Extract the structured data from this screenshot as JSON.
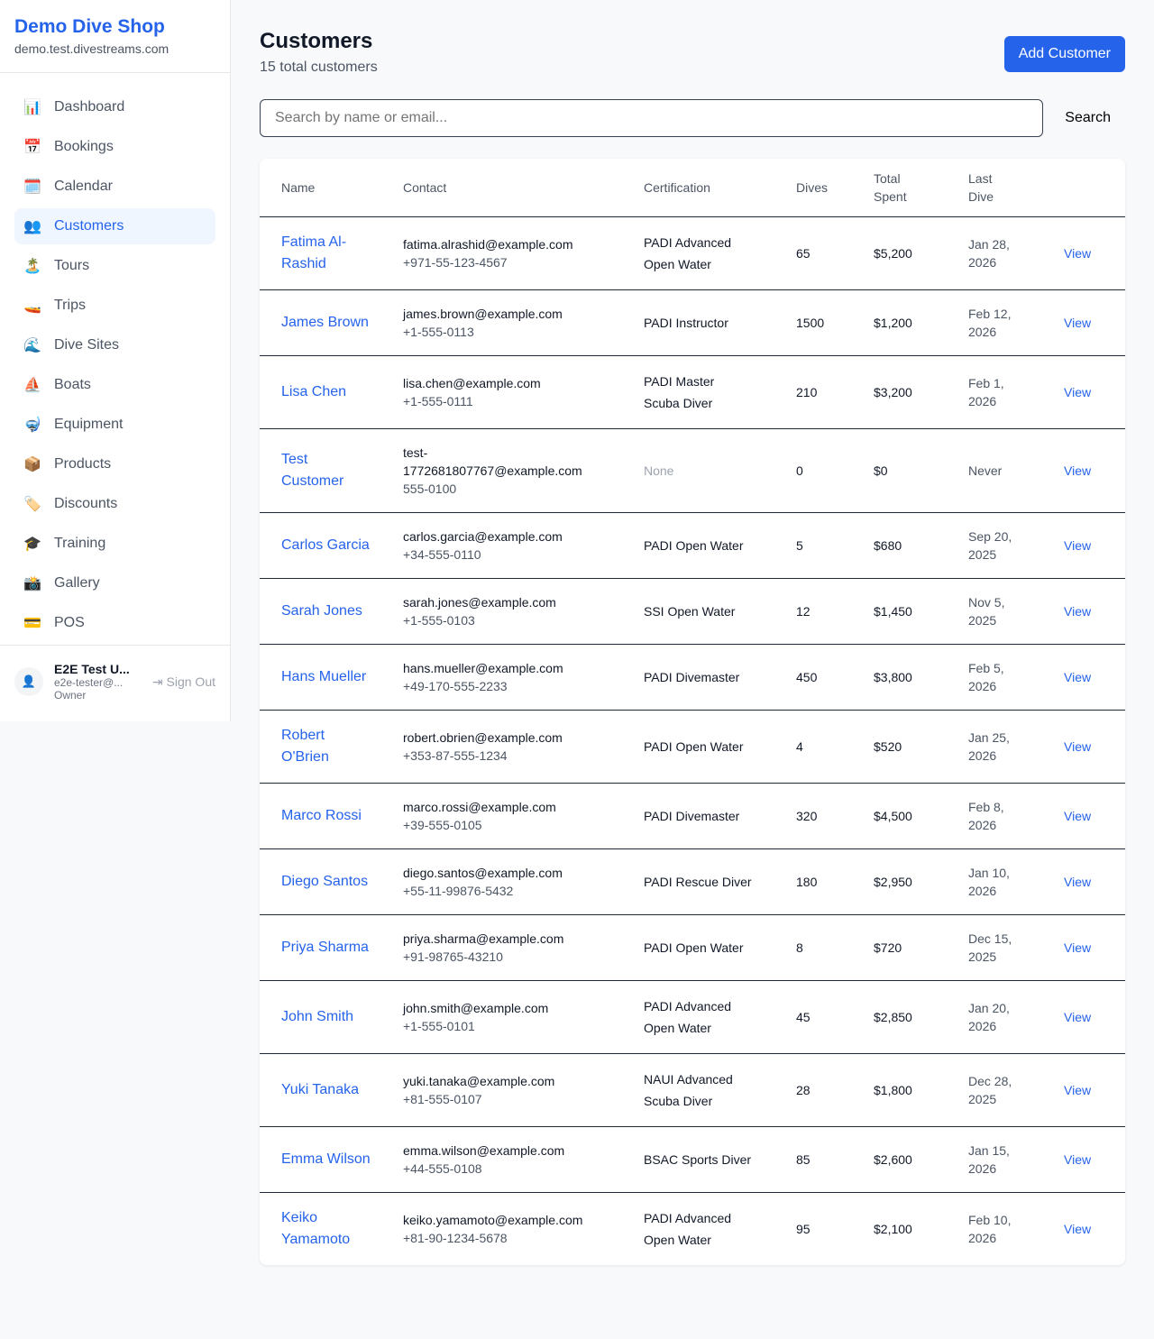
{
  "sidebar": {
    "brand": "Demo Dive Shop",
    "domain": "demo.test.divestreams.com",
    "items": [
      {
        "label": "Dashboard",
        "icon": "📊"
      },
      {
        "label": "Bookings",
        "icon": "📅"
      },
      {
        "label": "Calendar",
        "icon": "🗓️"
      },
      {
        "label": "Customers",
        "icon": "👥",
        "active": true
      },
      {
        "label": "Tours",
        "icon": "🏝️"
      },
      {
        "label": "Trips",
        "icon": "🚤"
      },
      {
        "label": "Dive Sites",
        "icon": "🌊"
      },
      {
        "label": "Boats",
        "icon": "⛵"
      },
      {
        "label": "Equipment",
        "icon": "🤿"
      },
      {
        "label": "Products",
        "icon": "📦"
      },
      {
        "label": "Discounts",
        "icon": "🏷️"
      },
      {
        "label": "Training",
        "icon": "🎓"
      },
      {
        "label": "Gallery",
        "icon": "📸"
      },
      {
        "label": "POS",
        "icon": "💳"
      }
    ],
    "user": {
      "name": "E2E Test U...",
      "email": "e2e-tester@...",
      "role": "Owner",
      "sign_out": "Sign Out"
    }
  },
  "header": {
    "title": "Customers",
    "subtitle": "15 total customers",
    "add_label": "Add Customer"
  },
  "search": {
    "placeholder": "Search by name or email...",
    "button": "Search"
  },
  "table": {
    "columns": [
      "Name",
      "Contact",
      "Certification",
      "Dives",
      "Total Spent",
      "Last Dive"
    ],
    "rows": [
      {
        "name": "Fatima Al-Rashid",
        "email": "fatima.alrashid@example.com",
        "phone": "+971-55-123-4567",
        "cert": "PADI Advanced Open Water",
        "dives": "65",
        "spent": "$5,200",
        "last": "Jan 28, 2026"
      },
      {
        "name": "James Brown",
        "email": "james.brown@example.com",
        "phone": "+1-555-0113",
        "cert": "PADI Instructor",
        "dives": "1500",
        "spent": "$1,200",
        "last": "Feb 12, 2026"
      },
      {
        "name": "Lisa Chen",
        "email": "lisa.chen@example.com",
        "phone": "+1-555-0111",
        "cert": "PADI Master Scuba Diver",
        "dives": "210",
        "spent": "$3,200",
        "last": "Feb 1, 2026"
      },
      {
        "name": "Test Customer",
        "email": "test-1772681807767@example.com",
        "phone": "555-0100",
        "cert": "None",
        "dives": "0",
        "spent": "$0",
        "last": "Never"
      },
      {
        "name": "Carlos Garcia",
        "email": "carlos.garcia@example.com",
        "phone": "+34-555-0110",
        "cert": "PADI Open Water",
        "dives": "5",
        "spent": "$680",
        "last": "Sep 20, 2025"
      },
      {
        "name": "Sarah Jones",
        "email": "sarah.jones@example.com",
        "phone": "+1-555-0103",
        "cert": "SSI Open Water",
        "dives": "12",
        "spent": "$1,450",
        "last": "Nov 5, 2025"
      },
      {
        "name": "Hans Mueller",
        "email": "hans.mueller@example.com",
        "phone": "+49-170-555-2233",
        "cert": "PADI Divemaster",
        "dives": "450",
        "spent": "$3,800",
        "last": "Feb 5, 2026"
      },
      {
        "name": "Robert O'Brien",
        "email": "robert.obrien@example.com",
        "phone": "+353-87-555-1234",
        "cert": "PADI Open Water",
        "dives": "4",
        "spent": "$520",
        "last": "Jan 25, 2026"
      },
      {
        "name": "Marco Rossi",
        "email": "marco.rossi@example.com",
        "phone": "+39-555-0105",
        "cert": "PADI Divemaster",
        "dives": "320",
        "spent": "$4,500",
        "last": "Feb 8, 2026"
      },
      {
        "name": "Diego Santos",
        "email": "diego.santos@example.com",
        "phone": "+55-11-99876-5432",
        "cert": "PADI Rescue Diver",
        "dives": "180",
        "spent": "$2,950",
        "last": "Jan 10, 2026"
      },
      {
        "name": "Priya Sharma",
        "email": "priya.sharma@example.com",
        "phone": "+91-98765-43210",
        "cert": "PADI Open Water",
        "dives": "8",
        "spent": "$720",
        "last": "Dec 15, 2025"
      },
      {
        "name": "John Smith",
        "email": "john.smith@example.com",
        "phone": "+1-555-0101",
        "cert": "PADI Advanced Open Water",
        "dives": "45",
        "spent": "$2,850",
        "last": "Jan 20, 2026"
      },
      {
        "name": "Yuki Tanaka",
        "email": "yuki.tanaka@example.com",
        "phone": "+81-555-0107",
        "cert": "NAUI Advanced Scuba Diver",
        "dives": "28",
        "spent": "$1,800",
        "last": "Dec 28, 2025"
      },
      {
        "name": "Emma Wilson",
        "email": "emma.wilson@example.com",
        "phone": "+44-555-0108",
        "cert": "BSAC Sports Diver",
        "dives": "85",
        "spent": "$2,600",
        "last": "Jan 15, 2026"
      },
      {
        "name": "Keiko Yamamoto",
        "email": "keiko.yamamoto@example.com",
        "phone": "+81-90-1234-5678",
        "cert": "PADI Advanced Open Water",
        "dives": "95",
        "spent": "$2,100",
        "last": "Feb 10, 2026"
      }
    ],
    "view_label": "View"
  },
  "colors": {
    "accent": "#2563eb"
  }
}
